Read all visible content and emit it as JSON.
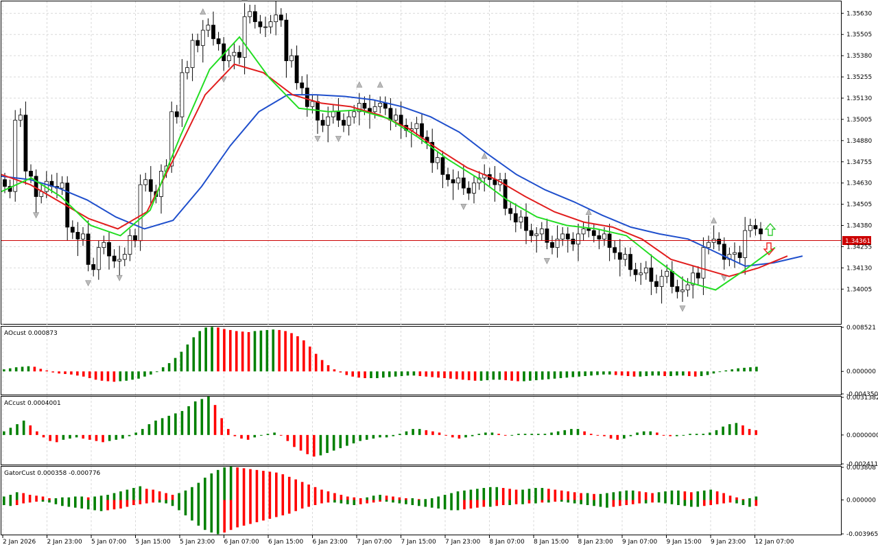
{
  "colors": {
    "bull": "#008000",
    "bear": "#ff0000",
    "jaw": "#1f4fcc",
    "teeth": "#e11d1d",
    "lips": "#22dd22",
    "price_line": "#cc0000",
    "grid": "#d9d9d9"
  },
  "icons": {
    "up_arrow": "up-arrow-icon",
    "down_arrow": "down-arrow-icon",
    "fractal": "fractal-marker-icon"
  },
  "chart_data": [
    {
      "type": "candlestick",
      "panel": "main",
      "symbol_price_line": "1.34361",
      "ylim": [
        1.338,
        1.357
      ],
      "yticks": [
        "1.35630",
        "1.35505",
        "1.35380",
        "1.35255",
        "1.35130",
        "1.35005",
        "1.34880",
        "1.34755",
        "1.34630",
        "1.34505",
        "1.34380",
        "1.34255",
        "1.34130",
        "1.34005"
      ],
      "xticks": [
        "2 Jan 2026",
        "2 Jan 23:00",
        "5 Jan 07:00",
        "5 Jan 15:00",
        "5 Jan 23:00",
        "6 Jan 07:00",
        "6 Jan 15:00",
        "6 Jan 23:00",
        "7 Jan 07:00",
        "7 Jan 15:00",
        "7 Jan 23:00",
        "8 Jan 07:00",
        "8 Jan 15:00",
        "8 Jan 23:00",
        "9 Jan 07:00",
        "9 Jan 15:00",
        "9 Jan 23:00",
        "12 Jan 07:00"
      ],
      "close_path": [
        1.3461,
        1.35,
        1.347,
        1.3455,
        1.3464,
        1.346,
        1.3437,
        1.343,
        1.3415,
        1.3425,
        1.342,
        1.3418,
        1.3432,
        1.3462,
        1.3458,
        1.347,
        1.3505,
        1.3528,
        1.3547,
        1.3553,
        1.3548,
        1.3535,
        1.354,
        1.3561,
        1.3558,
        1.3555,
        1.3562,
        1.3535,
        1.3522,
        1.3508,
        1.35,
        1.3502,
        1.35,
        1.3502,
        1.351,
        1.3505,
        1.351,
        1.35,
        1.3497,
        1.3495,
        1.349,
        1.3475,
        1.3468,
        1.3463,
        1.346,
        1.3463,
        1.3468,
        1.3462,
        1.3448,
        1.344,
        1.3435,
        1.3433,
        1.3428,
        1.343,
        1.343,
        1.3433,
        1.3435,
        1.343,
        1.3425,
        1.3418,
        1.3412,
        1.341,
        1.3405,
        1.3408,
        1.3402,
        1.34,
        1.341,
        1.3425,
        1.343,
        1.3418,
        1.3422,
        1.3435,
        1.3436
      ],
      "series": [
        {
          "name": "Alligator Jaw",
          "values": [
            1.3467,
            1.3465,
            1.346,
            1.3453,
            1.3443,
            1.3436,
            1.3441,
            1.3461,
            1.3485,
            1.3505,
            1.3515,
            1.3515,
            1.3514,
            1.3512,
            1.3508,
            1.3502,
            1.3493,
            1.348,
            1.3468,
            1.3459,
            1.3452,
            1.3444,
            1.3437,
            1.3433,
            1.343,
            1.3422,
            1.3414,
            1.3416,
            1.342
          ]
        },
        {
          "name": "Alligator Teeth",
          "values": [
            1.3468,
            1.3462,
            1.3452,
            1.3442,
            1.3436,
            1.3446,
            1.348,
            1.3515,
            1.3533,
            1.3528,
            1.3515,
            1.351,
            1.3508,
            1.3503,
            1.3495,
            1.3483,
            1.3472,
            1.3465,
            1.3455,
            1.3446,
            1.344,
            1.3437,
            1.343,
            1.3418,
            1.3413,
            1.3408,
            1.3413,
            1.342
          ]
        },
        {
          "name": "Alligator Lips",
          "values": [
            1.3458,
            1.3466,
            1.3455,
            1.3438,
            1.3432,
            1.3447,
            1.349,
            1.353,
            1.3549,
            1.3525,
            1.3507,
            1.3505,
            1.3506,
            1.3501,
            1.349,
            1.3477,
            1.3466,
            1.3453,
            1.3443,
            1.3438,
            1.3436,
            1.3432,
            1.3418,
            1.3405,
            1.34,
            1.3412,
            1.3425
          ]
        }
      ]
    },
    {
      "type": "histogram",
      "panel": "ao",
      "title": "AOcust 0.000873",
      "yticks": [
        "0.008521",
        "0.000000",
        "-0.004350"
      ],
      "ylim": [
        -0.00435,
        0.008521
      ],
      "values": [
        0.0004,
        0.0006,
        0.0008,
        0.0009,
        0.001,
        0.0009,
        0.0005,
        0.0002,
        -0.0002,
        -0.0004,
        -0.0005,
        -0.0006,
        -0.0008,
        -0.001,
        -0.0013,
        -0.0016,
        -0.0018,
        -0.0019,
        -0.002,
        -0.0019,
        -0.0018,
        -0.0016,
        -0.0014,
        -0.001,
        -0.0006,
        0.0,
        0.0008,
        0.0016,
        0.0026,
        0.0038,
        0.0052,
        0.0066,
        0.0078,
        0.0085,
        0.0086,
        0.0085,
        0.0082,
        0.008,
        0.0078,
        0.0077,
        0.0076,
        0.0078,
        0.0079,
        0.008,
        0.0081,
        0.008,
        0.0078,
        0.0074,
        0.0068,
        0.006,
        0.0048,
        0.0034,
        0.0022,
        0.0012,
        0.0004,
        -0.0002,
        -0.0007,
        -0.001,
        -0.0012,
        -0.0013,
        -0.0013,
        -0.0013,
        -0.0012,
        -0.0011,
        -0.001,
        -0.0009,
        -0.0008,
        -0.0008,
        -0.0009,
        -0.001,
        -0.0011,
        -0.0012,
        -0.0013,
        -0.0014,
        -0.0015,
        -0.0016,
        -0.0017,
        -0.0018,
        -0.0018,
        -0.0017,
        -0.0016,
        -0.0016,
        -0.0017,
        -0.0018,
        -0.0019,
        -0.0019,
        -0.0018,
        -0.0017,
        -0.0016,
        -0.0015,
        -0.0014,
        -0.0013,
        -0.0012,
        -0.0011,
        -0.001,
        -0.0009,
        -0.0008,
        -0.0007,
        -0.0006,
        -0.0006,
        -0.0007,
        -0.0008,
        -0.0009,
        -0.001,
        -0.001,
        -0.0009,
        -0.0008,
        -0.0008,
        -0.0009,
        -0.0009,
        -0.0008,
        -0.0008,
        -0.0009,
        -0.001,
        -0.0009,
        -0.0007,
        -0.0004,
        -0.0001,
        0.0002,
        0.0004,
        0.0006,
        0.0007,
        0.0008,
        0.0009
      ]
    },
    {
      "type": "histogram",
      "panel": "ac",
      "title": "ACcust 0.0004001",
      "yticks": [
        "0.0031382",
        "0.0000000",
        "-0.0024114"
      ],
      "ylim": [
        -0.0024114,
        0.0031382
      ],
      "values": [
        0.0003,
        0.0006,
        0.0009,
        0.0012,
        0.0008,
        0.0003,
        -0.0002,
        -0.0005,
        -0.0006,
        -0.0004,
        -0.0003,
        -0.0002,
        -0.0003,
        -0.0004,
        -0.0005,
        -0.0006,
        -0.0005,
        -0.0004,
        -0.0003,
        -0.0001,
        0.0002,
        0.0005,
        0.0009,
        0.0012,
        0.0014,
        0.0016,
        0.0018,
        0.002,
        0.0024,
        0.0028,
        0.003,
        0.0032,
        0.0025,
        0.0014,
        0.0005,
        -0.0001,
        -0.0003,
        -0.0004,
        -0.0002,
        0.0,
        0.0001,
        0.0002,
        0.0,
        -0.0005,
        -0.001,
        -0.0013,
        -0.0016,
        -0.0018,
        -0.0017,
        -0.0015,
        -0.0013,
        -0.0011,
        -0.0009,
        -0.0007,
        -0.0005,
        -0.0004,
        -0.0003,
        -0.0002,
        -0.0002,
        -0.0001,
        0.0001,
        0.0003,
        0.0005,
        0.0005,
        0.0004,
        0.0003,
        0.0002,
        0.0,
        -0.0002,
        -0.0003,
        -0.0002,
        -0.0001,
        0.0001,
        0.0002,
        0.0002,
        0.0001,
        0.0,
        0.0,
        0.0001,
        0.0001,
        0.0001,
        0.0001,
        0.0001,
        0.0002,
        0.0003,
        0.0004,
        0.0005,
        0.0005,
        0.0003,
        0.0001,
        0.0,
        -0.0001,
        -0.0003,
        -0.0004,
        -0.0003,
        -0.0001,
        0.0002,
        0.0003,
        0.0003,
        0.0002,
        0.0,
        -0.0001,
        -0.0001,
        0.0,
        0.0001,
        0.0001,
        0.0001,
        0.0002,
        0.0004,
        0.0007,
        0.0009,
        0.001,
        0.0008,
        0.0005,
        0.0004
      ]
    },
    {
      "type": "histogram",
      "panel": "gator",
      "title": "GatorCust 0.000358 -0.000776",
      "yticks": [
        "0.003808",
        "0.000000",
        "-0.003965"
      ],
      "ylim": [
        -0.003965,
        0.003808
      ],
      "upper": [
        0.0004,
        0.0006,
        0.0009,
        0.0008,
        0.0006,
        0.0005,
        0.0004,
        0.0002,
        0.0002,
        0.0003,
        0.0003,
        0.0004,
        0.0004,
        0.0003,
        0.0004,
        0.0005,
        0.0006,
        0.0008,
        0.001,
        0.0012,
        0.0014,
        0.0016,
        0.0013,
        0.0012,
        0.001,
        0.0008,
        0.0006,
        0.0008,
        0.0011,
        0.0015,
        0.002,
        0.0026,
        0.0031,
        0.0035,
        0.0038,
        0.0039,
        0.0038,
        0.0037,
        0.0036,
        0.0035,
        0.0034,
        0.0033,
        0.0032,
        0.003,
        0.0027,
        0.0024,
        0.0021,
        0.0018,
        0.0015,
        0.0012,
        0.001,
        0.0008,
        0.0006,
        0.0004,
        0.0003,
        0.0002,
        0.0003,
        0.0005,
        0.0006,
        0.0005,
        0.0004,
        0.0003,
        0.0002,
        0.0002,
        0.0001,
        0.0001,
        0.0002,
        0.0004,
        0.0006,
        0.0008,
        0.001,
        0.0011,
        0.0012,
        0.0013,
        0.0014,
        0.0015,
        0.0015,
        0.0014,
        0.0013,
        0.0012,
        0.0012,
        0.0013,
        0.0014,
        0.0014,
        0.0013,
        0.0012,
        0.0011,
        0.001,
        0.0009,
        0.0008,
        0.0008,
        0.0007,
        0.0007,
        0.0008,
        0.0009,
        0.001,
        0.0011,
        0.0011,
        0.001,
        0.0009,
        0.0008,
        0.0009,
        0.001,
        0.0011,
        0.0011,
        0.001,
        0.0009,
        0.001,
        0.0011,
        0.0012,
        0.001,
        0.0008,
        0.0005,
        0.0003,
        0.0001,
        0.0002,
        0.0004
      ],
      "lower": [
        -0.0006,
        -0.0007,
        -0.0006,
        -0.0004,
        -0.0003,
        -0.0002,
        -0.0002,
        -0.0003,
        -0.0005,
        -0.0007,
        -0.0008,
        -0.0009,
        -0.001,
        -0.0011,
        -0.0012,
        -0.0013,
        -0.0012,
        -0.0011,
        -0.001,
        -0.0008,
        -0.0006,
        -0.0005,
        -0.0004,
        -0.0003,
        -0.0003,
        -0.0004,
        -0.0007,
        -0.0012,
        -0.0018,
        -0.0024,
        -0.003,
        -0.0035,
        -0.0038,
        -0.004,
        -0.0038,
        -0.0035,
        -0.0032,
        -0.003,
        -0.0028,
        -0.0026,
        -0.0024,
        -0.0022,
        -0.002,
        -0.0018,
        -0.0016,
        -0.0013,
        -0.001,
        -0.0008,
        -0.0006,
        -0.0004,
        -0.0003,
        -0.0003,
        -0.0004,
        -0.0005,
        -0.0006,
        -0.0005,
        -0.0004,
        -0.0003,
        -0.0002,
        -0.0002,
        -0.0003,
        -0.0004,
        -0.0005,
        -0.0006,
        -0.0007,
        -0.0008,
        -0.0009,
        -0.001,
        -0.0011,
        -0.0012,
        -0.0012,
        -0.0011,
        -0.001,
        -0.0009,
        -0.0008,
        -0.0008,
        -0.0007,
        -0.0006,
        -0.0006,
        -0.0005,
        -0.0005,
        -0.0004,
        -0.0004,
        -0.0003,
        -0.0003,
        -0.0002,
        -0.0002,
        -0.0003,
        -0.0004,
        -0.0005,
        -0.0006,
        -0.0007,
        -0.0008,
        -0.0009,
        -0.0008,
        -0.0007,
        -0.0006,
        -0.0005,
        -0.0004,
        -0.0004,
        -0.0003,
        -0.0003,
        -0.0004,
        -0.0005,
        -0.0006,
        -0.0007,
        -0.0008,
        -0.0008,
        -0.0007,
        -0.0006,
        -0.0005,
        -0.0004,
        -0.0003,
        -0.0004,
        -0.0006,
        -0.0008,
        -0.0007
      ]
    }
  ]
}
